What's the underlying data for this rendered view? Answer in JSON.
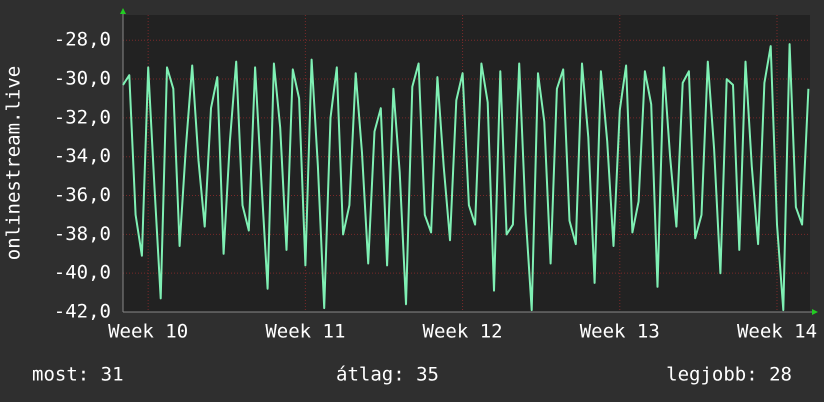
{
  "chart_data": {
    "type": "line",
    "ylabel": "onlinestream.live",
    "color": "#7ff0b4",
    "grid": true,
    "ylim": [
      -42,
      -26.7
    ],
    "yticks": [
      {
        "value": -42,
        "label": "-42,0"
      },
      {
        "value": -40,
        "label": "-40,0"
      },
      {
        "value": -38,
        "label": "-38,0"
      },
      {
        "value": -36,
        "label": "-36,0"
      },
      {
        "value": -34,
        "label": "-34,0"
      },
      {
        "value": -32,
        "label": "-32,0"
      },
      {
        "value": -30,
        "label": "-30,0"
      },
      {
        "value": -28,
        "label": "-28,0"
      }
    ],
    "xlim": [
      9.84,
      14.21
    ],
    "xticks": [
      {
        "value": 10,
        "label": "Week 10"
      },
      {
        "value": 11,
        "label": "Week 11"
      },
      {
        "value": 12,
        "label": "Week 12"
      },
      {
        "value": 13,
        "label": "Week 13"
      },
      {
        "value": 14,
        "label": "Week 14"
      }
    ],
    "x": [
      9.84,
      9.88,
      9.92,
      9.96,
      10,
      10.04,
      10.08,
      10.12,
      10.16,
      10.2,
      10.24,
      10.28,
      10.32,
      10.36,
      10.4,
      10.44,
      10.48,
      10.52,
      10.56,
      10.6,
      10.64,
      10.68,
      10.72,
      10.76,
      10.8,
      10.84,
      10.88,
      10.92,
      10.96,
      11,
      11.04,
      11.08,
      11.12,
      11.16,
      11.2,
      11.24,
      11.28,
      11.32,
      11.36,
      11.4,
      11.44,
      11.48,
      11.52,
      11.56,
      11.6,
      11.64,
      11.68,
      11.72,
      11.76,
      11.8,
      11.84,
      11.88,
      11.92,
      11.96,
      12,
      12.04,
      12.08,
      12.12,
      12.16,
      12.2,
      12.24,
      12.28,
      12.32,
      12.36,
      12.4,
      12.44,
      12.48,
      12.52,
      12.56,
      12.6,
      12.64,
      12.68,
      12.72,
      12.76,
      12.8,
      12.84,
      12.88,
      12.92,
      12.96,
      13,
      13.04,
      13.08,
      13.12,
      13.16,
      13.2,
      13.24,
      13.28,
      13.32,
      13.36,
      13.4,
      13.44,
      13.48,
      13.52,
      13.56,
      13.6,
      13.64,
      13.68,
      13.72,
      13.76,
      13.8,
      13.84,
      13.88,
      13.92,
      13.96,
      14,
      14.04,
      14.08,
      14.12,
      14.16,
      14.2
    ],
    "values": [
      -30.3,
      -29.8,
      -37,
      -39.1,
      -29.4,
      -35.5,
      -41.3,
      -29.4,
      -30.5,
      -38.6,
      -33.5,
      -29.3,
      -34.2,
      -37.6,
      -31.5,
      -29.9,
      -39,
      -33.2,
      -29.1,
      -36.5,
      -37.8,
      -29.4,
      -35.2,
      -40.8,
      -29.2,
      -32.5,
      -38.8,
      -29.5,
      -31,
      -39.6,
      -29,
      -34.5,
      -41.8,
      -32,
      -29.4,
      -38,
      -36.5,
      -29.7,
      -33.8,
      -39.5,
      -32.7,
      -31.5,
      -39.6,
      -30.5,
      -34.8,
      -41.6,
      -30.4,
      -29.2,
      -37,
      -37.9,
      -29.9,
      -34.5,
      -38.3,
      -31.1,
      -29.7,
      -36.5,
      -37.5,
      -29.2,
      -31.2,
      -40.9,
      -29.6,
      -38,
      -37.5,
      -29.2,
      -36.9,
      -41.9,
      -29.7,
      -32.2,
      -39.5,
      -30.5,
      -29.5,
      -37.3,
      -38.5,
      -29.2,
      -33,
      -40.5,
      -29.6,
      -33.2,
      -38.6,
      -31.6,
      -29.3,
      -37.9,
      -36.3,
      -29.6,
      -31.3,
      -40.7,
      -29.4,
      -34,
      -37.6,
      -30.2,
      -29.6,
      -38.2,
      -37,
      -29.1,
      -33.6,
      -40,
      -30,
      -30.3,
      -38.8,
      -29.1,
      -34.5,
      -38.5,
      -30.2,
      -28.3,
      -37.5,
      -41.9,
      -28.2,
      -36.6,
      -37.5,
      -30.5
    ],
    "footer": [
      "most: 31",
      "átlag: 35",
      "legjobb: 28"
    ]
  }
}
